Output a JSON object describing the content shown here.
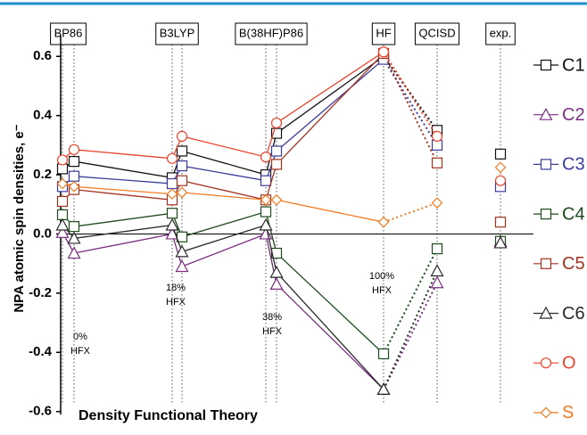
{
  "chart_data": {
    "type": "line",
    "y_label": "NPA atomic spin densities, e⁻",
    "x_label": "Density Functional Theory",
    "categories": [
      "BP86",
      null,
      "B3LYP",
      null,
      "B(38HF)P86",
      null,
      "HF",
      "QCISD",
      "exp."
    ],
    "annotations": [
      [
        "0%",
        "HFX"
      ],
      [
        "18%",
        "HFX"
      ],
      [
        "38%",
        "HFX"
      ],
      [
        "100%",
        "HFX"
      ]
    ],
    "ylim": [
      -0.61,
      0.67
    ],
    "yticks": [
      0.6,
      0.4,
      0.2,
      {
        "value": 0,
        "label": "0.0"
      },
      -0.2,
      -0.4,
      -0.6
    ],
    "series": [
      {
        "name": "C1",
        "color": "#111111",
        "marker": "square",
        "values": [
          0.22,
          0.245,
          0.19,
          0.28,
          0.2,
          0.34,
          0.6,
          0.35,
          0.27
        ]
      },
      {
        "name": "C2",
        "color": "#7b2e82",
        "marker": "triangle",
        "values": [
          0.005,
          -0.065,
          0.0,
          -0.11,
          0.0,
          -0.17,
          -0.525,
          -0.165,
          -0.025
        ]
      },
      {
        "name": "C3",
        "color": "#3b3b9c",
        "marker": "square",
        "values": [
          0.16,
          0.195,
          0.17,
          0.23,
          0.18,
          0.28,
          0.59,
          0.3,
          0.16
        ]
      },
      {
        "name": "C4",
        "color": "#1c4a1c",
        "marker": "square",
        "values": [
          0.065,
          0.025,
          0.07,
          -0.01,
          0.075,
          -0.065,
          -0.405,
          -0.05,
          -0.025
        ]
      },
      {
        "name": "C5",
        "color": "#a3321f",
        "marker": "square",
        "values": [
          0.11,
          0.15,
          0.115,
          0.18,
          0.115,
          0.235,
          0.61,
          0.24,
          0.04
        ]
      },
      {
        "name": "C6",
        "color": "#2a2a2a",
        "marker": "triangle",
        "values": [
          0.03,
          -0.015,
          0.03,
          -0.06,
          0.03,
          -0.13,
          -0.525,
          -0.125,
          -0.03
        ]
      },
      {
        "name": "O",
        "color": "#e8432c",
        "marker": "circle",
        "values": [
          0.25,
          0.285,
          0.255,
          0.33,
          0.26,
          0.375,
          0.615,
          0.33,
          0.18
        ]
      },
      {
        "name": "S",
        "color": "#f07a22",
        "marker": "diamond",
        "values": [
          0.17,
          0.16,
          0.135,
          0.14,
          0.115,
          0.115,
          0.04,
          0.105,
          0.225
        ]
      }
    ]
  }
}
